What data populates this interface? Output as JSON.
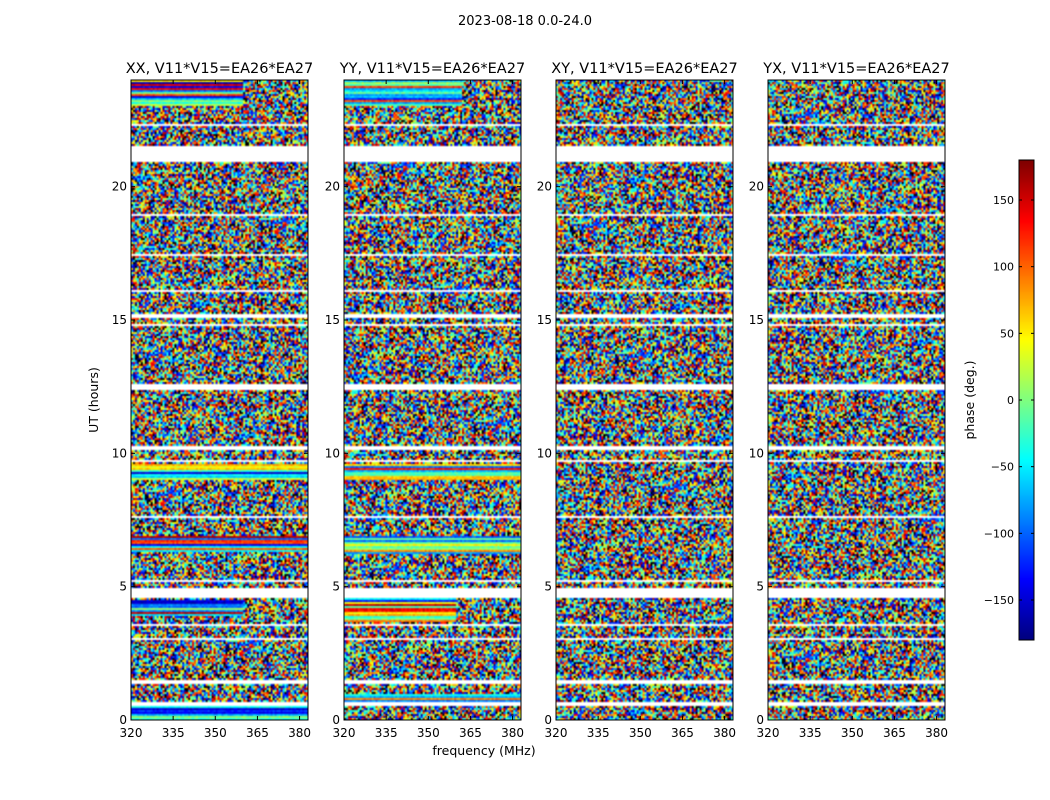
{
  "figure": {
    "suptitle": "2023-08-18 0.0-24.0"
  },
  "chart_data": [
    {
      "type": "heatmap",
      "title": "XX, V11*V15=EA26*EA27",
      "xlabel": "frequency (MHz)",
      "ylabel": "UT (hours)",
      "xlim": [
        320,
        383
      ],
      "ylim": [
        0,
        24
      ],
      "xticks": [
        320,
        335,
        350,
        365,
        380
      ],
      "yticks": [
        0,
        5,
        10,
        15,
        20
      ],
      "value": "phase (deg.)",
      "coherent_bands": [
        {
          "t0": 23.0,
          "t1": 24.0,
          "f_end": 360
        },
        {
          "t0": 6.3,
          "t1": 6.9,
          "f_end": 383
        },
        {
          "t0": 9.0,
          "t1": 9.6,
          "f_end": 383
        },
        {
          "t0": 3.9,
          "t1": 4.5,
          "f_end": 360
        },
        {
          "t0": 0.0,
          "t1": 0.5,
          "f_end": 383
        }
      ]
    },
    {
      "type": "heatmap",
      "title": "YY, V11*V15=EA26*EA27",
      "xlabel": "frequency (MHz)",
      "ylabel": "",
      "xlim": [
        320,
        383
      ],
      "ylim": [
        0,
        24
      ],
      "xticks": [
        320,
        335,
        350,
        365,
        380
      ],
      "yticks": [
        0,
        5,
        10,
        15,
        20
      ],
      "value": "phase (deg.)",
      "coherent_bands": [
        {
          "t0": 23.0,
          "t1": 24.0,
          "f_end": 362
        },
        {
          "t0": 6.2,
          "t1": 6.9,
          "f_end": 383
        },
        {
          "t0": 9.0,
          "t1": 9.6,
          "f_end": 383
        },
        {
          "t0": 3.7,
          "t1": 4.6,
          "f_end": 360
        },
        {
          "t0": 0.5,
          "t1": 1.0,
          "f_end": 383
        }
      ]
    },
    {
      "type": "heatmap",
      "title": "XY, V11*V15=EA26*EA27",
      "xlabel": "frequency (MHz)",
      "ylabel": "",
      "xlim": [
        320,
        383
      ],
      "ylim": [
        0,
        24
      ],
      "xticks": [
        320,
        335,
        350,
        365,
        380
      ],
      "yticks": [
        0,
        5,
        10,
        15,
        20
      ],
      "value": "phase (deg.)",
      "coherent_bands": []
    },
    {
      "type": "heatmap",
      "title": "YX, V11*V15=EA26*EA27",
      "xlabel": "frequency (MHz)",
      "ylabel": "",
      "xlim": [
        320,
        383
      ],
      "ylim": [
        0,
        24
      ],
      "xticks": [
        320,
        335,
        350,
        365,
        380
      ],
      "yticks": [
        0,
        5,
        10,
        15,
        20
      ],
      "value": "phase (deg.)",
      "coherent_bands": []
    }
  ],
  "colorbar": {
    "label": "phase (deg.)",
    "range": [
      -180,
      180
    ],
    "ticks": [
      150,
      100,
      50,
      0,
      -50,
      -100,
      -150
    ],
    "tick_labels": [
      "150",
      "100",
      "50",
      "0",
      "−50",
      "−100",
      "−150"
    ],
    "colormap": "jet"
  },
  "flagged_gaps_hours": [
    [
      21.35,
      21.45
    ],
    [
      21.5,
      20.95
    ],
    [
      22.3,
      22.35
    ],
    [
      18.9,
      19.0
    ],
    [
      17.4,
      17.45
    ],
    [
      15.05,
      15.2
    ],
    [
      14.75,
      14.85
    ],
    [
      12.35,
      12.6
    ],
    [
      10.15,
      10.3
    ],
    [
      9.7,
      9.75
    ],
    [
      5.2,
      5.25
    ],
    [
      4.55,
      4.95
    ],
    [
      3.55,
      3.6
    ],
    [
      3.0,
      3.05
    ],
    [
      2.15,
      2.2
    ],
    [
      1.35,
      1.5
    ],
    [
      0.5,
      0.65
    ],
    [
      7.6,
      7.65
    ],
    [
      16.05,
      16.1
    ]
  ]
}
